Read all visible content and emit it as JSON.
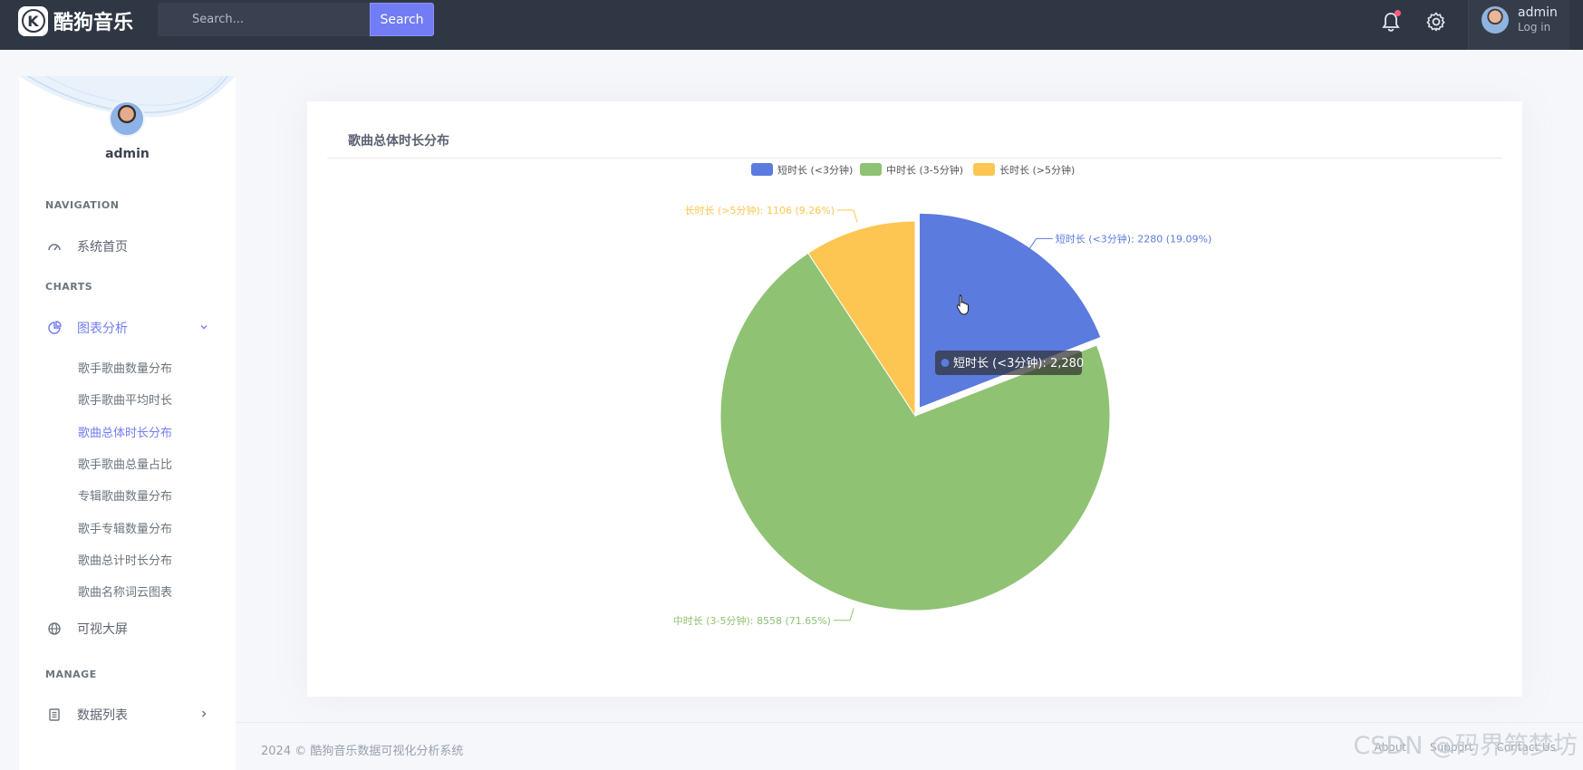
{
  "brand": {
    "logo_letter": "K",
    "name": "酷狗音乐"
  },
  "search": {
    "placeholder": "Search...",
    "button_label": "Search"
  },
  "user": {
    "name": "admin",
    "status": "Log in"
  },
  "sidebar": {
    "username": "admin",
    "sections": {
      "navigation": "NAVIGATION",
      "charts": "CHARTS",
      "manage": "MANAGE"
    },
    "home": "系统首页",
    "charts_menu": "图表分析",
    "charts_sub": [
      "歌手歌曲数量分布",
      "歌手歌曲平均时长",
      "歌曲总体时长分布",
      "歌手歌曲总量占比",
      "专辑歌曲数量分布",
      "歌手专辑数量分布",
      "歌曲总计时长分布",
      "歌曲名称词云图表"
    ],
    "bigscreen": "可视大屏",
    "datalist": "数据列表"
  },
  "card": {
    "title": "歌曲总体时长分布"
  },
  "chart_data": {
    "type": "pie",
    "categories": [
      "短时长 (<3分钟)",
      "中时长 (3-5分钟)",
      "长时长 (>5分钟)"
    ],
    "values": [
      2280,
      8558,
      1106
    ],
    "percents": [
      "19.09%",
      "71.65%",
      "9.26%"
    ],
    "colors": [
      "#5b7bde",
      "#8fc273",
      "#fdc652"
    ],
    "legend_position": "top-center",
    "tooltip": {
      "series": "短时长 (<3分钟)",
      "value": "2,280"
    }
  },
  "footer": {
    "copyright": "2024 © 酷狗音乐数据可视化分析系统",
    "links": [
      "About",
      "Support",
      "Contact Us"
    ]
  },
  "watermark": "CSDN @码界筑梦坊"
}
